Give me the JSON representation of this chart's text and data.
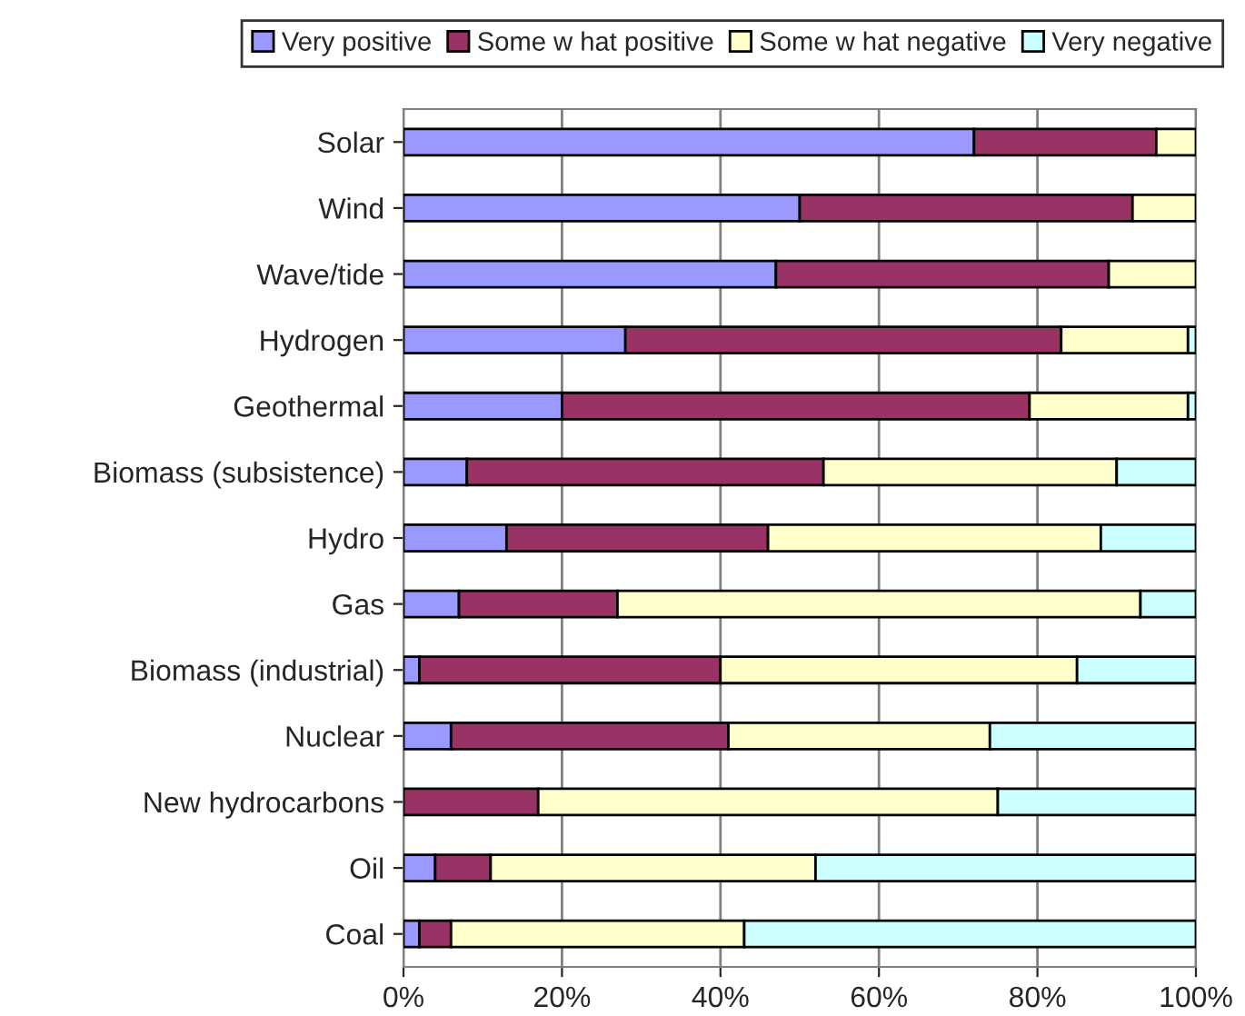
{
  "chart_data": {
    "type": "bar",
    "orientation": "horizontal",
    "stacked": true,
    "categories": [
      "Solar",
      "Wind",
      "Wave/tide",
      "Hydrogen",
      "Geothermal",
      "Biomass (subsistence)",
      "Hydro",
      "Gas",
      "Biomass (industrial)",
      "Nuclear",
      "New hydrocarbons",
      "Oil",
      "Coal"
    ],
    "series": [
      {
        "name": "Very positive",
        "color": "#9999ff",
        "values": [
          72,
          50,
          47,
          28,
          20,
          8,
          13,
          7,
          2,
          6,
          0,
          4,
          2
        ]
      },
      {
        "name": "Some w hat positive",
        "color": "#993366",
        "values": [
          23,
          42,
          42,
          55,
          59,
          45,
          33,
          20,
          38,
          35,
          17,
          7,
          4
        ]
      },
      {
        "name": "Some w hat negative",
        "color": "#ffffcc",
        "values": [
          5,
          8,
          11,
          16,
          20,
          37,
          42,
          66,
          45,
          33,
          58,
          41,
          37
        ]
      },
      {
        "name": "Very negative",
        "color": "#ccffff",
        "values": [
          0,
          0,
          0,
          1,
          1,
          10,
          12,
          7,
          15,
          26,
          25,
          48,
          57
        ]
      }
    ],
    "xlim": [
      0,
      100
    ],
    "xticks": [
      {
        "value": 0,
        "label": "0%"
      },
      {
        "value": 20,
        "label": "20%"
      },
      {
        "value": 40,
        "label": "40%"
      },
      {
        "value": 60,
        "label": "60%"
      },
      {
        "value": 80,
        "label": "80%"
      },
      {
        "value": 100,
        "label": "100%"
      }
    ],
    "grid": "x",
    "legend": "top"
  }
}
